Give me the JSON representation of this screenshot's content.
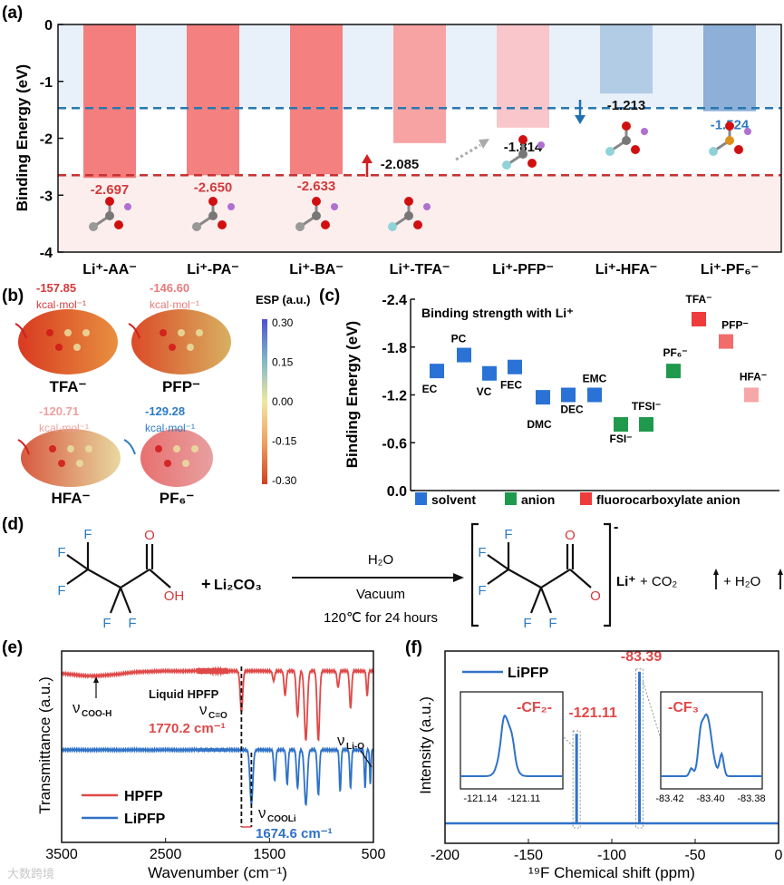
{
  "panel_labels": {
    "a": "(a)",
    "b": "(b)",
    "c": "(c)",
    "d": "(d)",
    "e": "(e)",
    "f": "(f)"
  },
  "chart_data": [
    {
      "id": "a",
      "type": "bar",
      "ylabel": "Binding Energy (eV)",
      "ylim": [
        -4,
        0
      ],
      "yticks": [
        "0",
        "-1",
        "-2",
        "-3",
        "-4"
      ],
      "categories": [
        "Li⁺-AA⁻",
        "Li⁺-PA⁻",
        "Li⁺-BA⁻",
        "Li⁺-TFA⁻",
        "Li⁺-PFP⁻",
        "Li⁺-HFA⁻",
        "Li⁺-PF₆⁻"
      ],
      "values": [
        -2.697,
        -2.65,
        -2.633,
        -2.085,
        -1.814,
        -1.213,
        -1.524
      ],
      "value_labels": [
        "-2.697",
        "-2.650",
        "-2.633",
        "-2.085",
        "-1.814",
        "-1.213",
        "-1.524"
      ],
      "bar_colors": [
        "#f47e7e",
        "#f48080",
        "#f48080",
        "#f7a3a3",
        "#f9c6cb",
        "#b2cce6",
        "#8eafd7"
      ],
      "label_colors": [
        "#d23a3a",
        "#d23a3a",
        "#d23a3a",
        "#111111",
        "#111111",
        "#111111",
        "#2e7cc4"
      ],
      "reference_lines": [
        {
          "value": -1.47,
          "color": "#2878b0"
        },
        {
          "value": -2.65,
          "color": "#c83232"
        }
      ]
    },
    {
      "id": "b",
      "type": "heatmap",
      "colorbar_title": "ESP (a.u.)",
      "colorbar_ticks": [
        "0.30",
        "0.15",
        "0.00",
        "-0.15",
        "-0.30"
      ],
      "molecules": [
        {
          "name": "TFA⁻",
          "value": "-157.85",
          "unit": "kcal·mol⁻¹",
          "color": "#d23a3a"
        },
        {
          "name": "PFP⁻",
          "value": "-146.60",
          "unit": "kcal·mol⁻¹",
          "color": "#e87a7a"
        },
        {
          "name": "HFA⁻",
          "value": "-120.71",
          "unit": "kcal·mol⁻¹",
          "color": "#eea0a0"
        },
        {
          "name": "PF₆⁻",
          "value": "-129.28",
          "unit": "kcal·mol⁻¹",
          "color": "#2e7cc4"
        }
      ]
    },
    {
      "id": "c",
      "type": "scatter",
      "title": "Binding strength with Li⁺",
      "ylabel": "Binding Energy (eV)",
      "ylim": [
        0,
        -2.4
      ],
      "yticks": [
        "-2.4",
        "-1.8",
        "-1.2",
        "-0.6",
        "0.0"
      ],
      "points": [
        {
          "label": "EC",
          "y": -1.5,
          "group": "solvent"
        },
        {
          "label": "PC",
          "y": -1.7,
          "group": "solvent"
        },
        {
          "label": "VC",
          "y": -1.47,
          "group": "solvent"
        },
        {
          "label": "FEC",
          "y": -1.55,
          "group": "solvent"
        },
        {
          "label": "DMC",
          "y": -1.17,
          "group": "solvent"
        },
        {
          "label": "DEC",
          "y": -1.2,
          "group": "solvent"
        },
        {
          "label": "EMC",
          "y": -1.2,
          "group": "solvent"
        },
        {
          "label": "FSI⁻",
          "y": -0.83,
          "group": "anion"
        },
        {
          "label": "TFSI⁻",
          "y": -0.83,
          "group": "anion"
        },
        {
          "label": "PF₆⁻",
          "y": -1.5,
          "group": "anion"
        },
        {
          "label": "TFA⁻",
          "y": -2.15,
          "group": "fluoro"
        },
        {
          "label": "PFP⁻",
          "y": -1.87,
          "group": "fluoro"
        },
        {
          "label": "HFA⁻",
          "y": -1.2,
          "group": "fluoro"
        }
      ],
      "legend": [
        {
          "key": "solvent",
          "label": "solvent",
          "color": "#2a72d6"
        },
        {
          "key": "anion",
          "label": "anion",
          "color": "#1f9a4c"
        },
        {
          "key": "fluoro",
          "label": "fluorocarboxylate anion",
          "color": "#ee3b3b"
        }
      ],
      "legend_position": "bottom"
    },
    {
      "id": "e",
      "type": "line",
      "xlabel": "Wavenumber (cm⁻¹)",
      "ylabel": "Transmittance (a.u.)",
      "xlim": [
        3500,
        500
      ],
      "xticks": [
        "3500",
        "2500",
        "1500",
        "500"
      ],
      "series": [
        {
          "name": "HPFP",
          "color": "#e04848",
          "baseline": 1.0,
          "dips": [
            [
              3200,
              0.06,
              250
            ],
            [
              1770,
              0.5,
              12
            ],
            [
              1460,
              0.12,
              10
            ],
            [
              1350,
              0.3,
              10
            ],
            [
              1230,
              0.55,
              12
            ],
            [
              1150,
              0.85,
              14
            ],
            [
              1030,
              0.85,
              12
            ],
            [
              840,
              0.2,
              10
            ],
            [
              720,
              0.45,
              10
            ],
            [
              560,
              0.3,
              8
            ]
          ]
        },
        {
          "name": "LiPFP",
          "color": "#2f72c8",
          "baseline": 0.0,
          "dips": [
            [
              1674,
              0.78,
              14
            ],
            [
              1450,
              0.45,
              9
            ],
            [
              1330,
              0.5,
              9
            ],
            [
              1230,
              0.55,
              10
            ],
            [
              1150,
              0.8,
              14
            ],
            [
              1030,
              0.65,
              10
            ],
            [
              820,
              0.6,
              8
            ],
            [
              720,
              0.55,
              8
            ],
            [
              580,
              0.55,
              7
            ],
            [
              530,
              0.5,
              6
            ]
          ]
        }
      ],
      "annotations": {
        "coo_h": "ν",
        "coo_h_sub": "COO-H",
        "liquid": "Liquid HPFP",
        "co": "ν",
        "co_sub": "C=O",
        "peak1": "1770.2 cm⁻¹",
        "cooli": "ν",
        "cooli_sub": "COOLi",
        "peak2": "1674.6 cm⁻¹",
        "lio": "ν",
        "lio_sub": "Li-O"
      }
    },
    {
      "id": "f",
      "type": "line",
      "xlabel": "¹⁹F Chemical shift (ppm)",
      "ylabel": "Intensity (a.u.)",
      "xlim": [
        -200,
        0
      ],
      "xticks": [
        "-200",
        "-150",
        "-100",
        "-50",
        "0"
      ],
      "series": [
        {
          "name": "LiPFP",
          "color": "#2f72c8"
        }
      ],
      "peaks": [
        {
          "x": -121.11,
          "label": "-121.11",
          "relative_height": 0.52,
          "group": "-CF₂-"
        },
        {
          "x": -83.39,
          "label": "-83.39",
          "relative_height": 0.88,
          "group": "-CF₃"
        }
      ],
      "insets": [
        {
          "title": "-CF₂-",
          "xticks": [
            "-121.14",
            "-121.11"
          ]
        },
        {
          "title": "-CF₃",
          "xticks": [
            "-83.42",
            "-83.40",
            "-83.38"
          ]
        }
      ]
    }
  ],
  "reaction": {
    "reagent2": "Li₂CO₃",
    "plus": "+",
    "condition_top": "H₂O",
    "condition_mid": "Vacuum",
    "condition_bottom": "120℃ for 24 hours",
    "charge": "-",
    "li": "Li⁺",
    "products": "+ CO₂",
    "products2": "+ H₂O",
    "atom_F": "F",
    "atom_O": "O",
    "atom_OH": "OH"
  },
  "watermark": "大数跨境"
}
